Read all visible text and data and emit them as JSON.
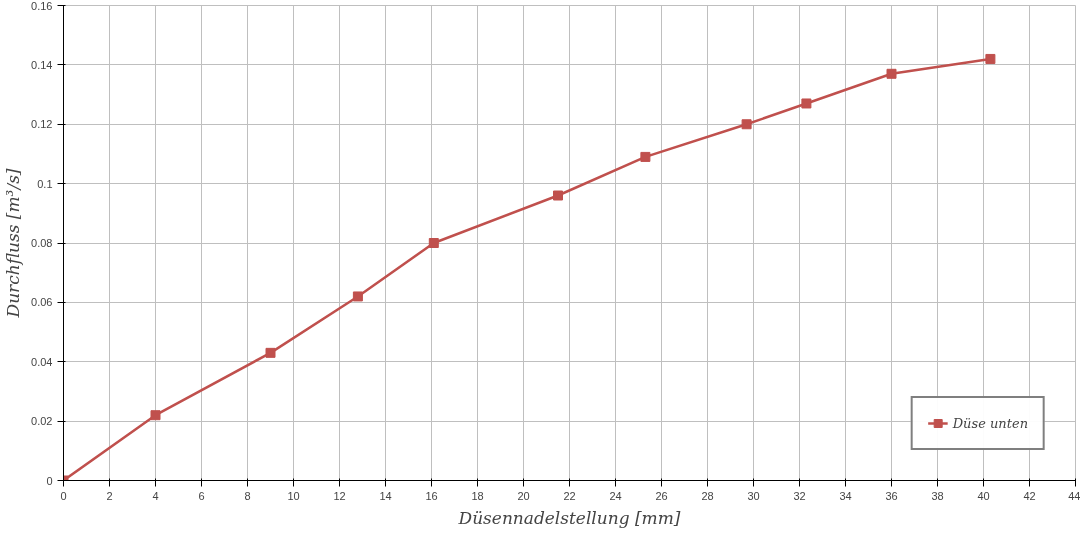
{
  "chart_data": {
    "type": "line",
    "xlabel": "Düsennadelstellung [mm]",
    "ylabel": "Durchfluss [m³/s]",
    "x": [
      0,
      4,
      9,
      12.8,
      16.1,
      21.5,
      25.3,
      29.7,
      32.3,
      36,
      40.3
    ],
    "series": [
      {
        "name": "Düse unten",
        "color": "#c0504d",
        "values": [
          0,
          0.022,
          0.043,
          0.062,
          0.08,
          0.096,
          0.109,
          0.12,
          0.127,
          0.137,
          0.142
        ]
      }
    ],
    "xlim": [
      0,
      44
    ],
    "xticks": [
      0,
      2,
      4,
      6,
      8,
      10,
      12,
      14,
      16,
      18,
      20,
      22,
      24,
      26,
      28,
      30,
      32,
      34,
      36,
      38,
      40,
      42,
      44
    ],
    "ylim": [
      0,
      0.16
    ],
    "yticks": [
      0,
      0.02,
      0.04,
      0.06,
      0.08,
      0.1,
      0.12,
      0.14,
      0.16
    ],
    "grid": true,
    "legend": "bottom right",
    "marker": "square",
    "line_style": "solid"
  }
}
